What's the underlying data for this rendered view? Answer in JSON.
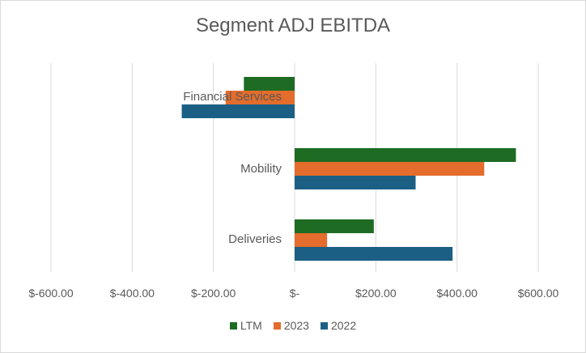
{
  "chart_data": {
    "type": "bar",
    "orientation": "horizontal",
    "title": "Segment ADJ EBITDA",
    "categories": [
      "Financial Services",
      "Mobility",
      "Deliveries"
    ],
    "series": [
      {
        "name": "LTM",
        "color": "#1e6b24",
        "values": [
          -125,
          545,
          195
        ]
      },
      {
        "name": "2023",
        "color": "#e46c2c",
        "values": [
          -170,
          467,
          80
        ]
      },
      {
        "name": "2022",
        "color": "#1b5f85",
        "values": [
          -278,
          298,
          389
        ]
      }
    ],
    "xlim": [
      -600,
      600
    ],
    "xticks": [
      -600,
      -400,
      -200,
      0,
      200,
      400,
      600
    ],
    "xtick_labels": [
      "$-600.00",
      "$-400.00",
      "$-200.00",
      "$-",
      "$200.00",
      "$400.00",
      "$600.00"
    ],
    "grid": true,
    "legend_position": "bottom"
  }
}
